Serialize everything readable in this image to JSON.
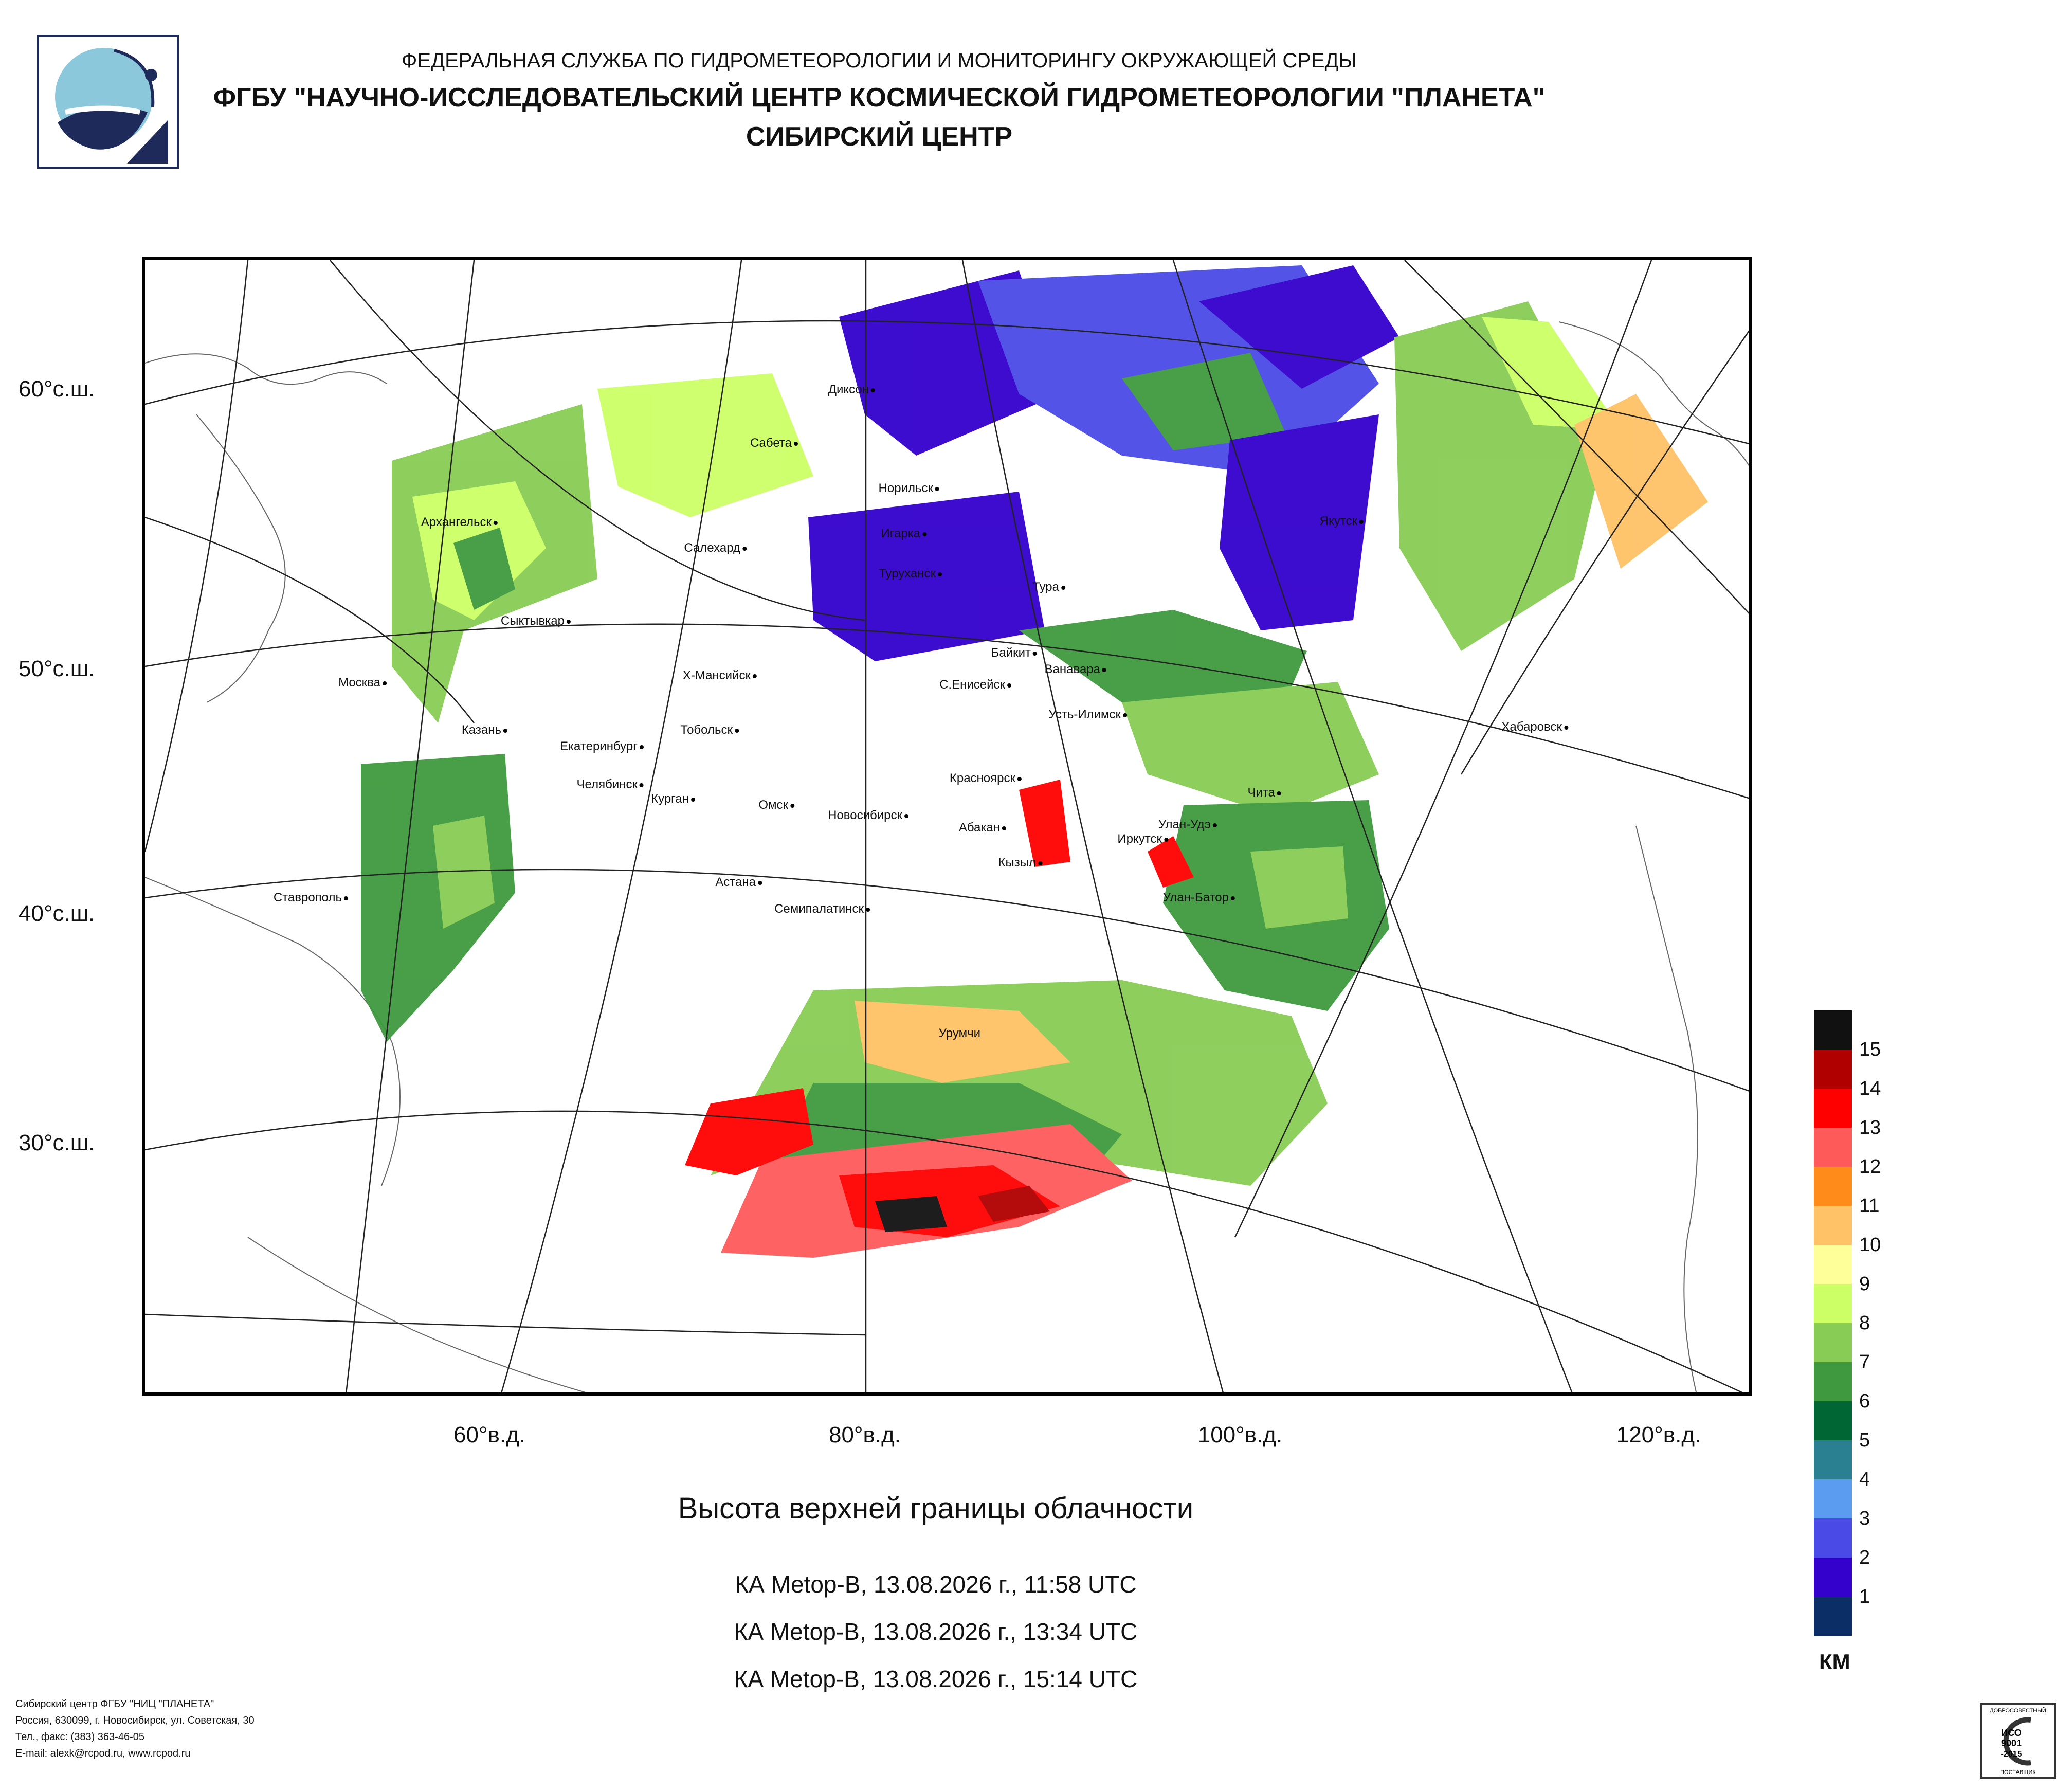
{
  "header": {
    "line1": "ФЕДЕРАЛЬНАЯ СЛУЖБА ПО ГИДРОМЕТЕОРОЛОГИИ И МОНИТОРИНГУ ОКРУЖАЮЩЕЙ СРЕДЫ",
    "line2": "ФГБУ \"НАУЧНО-ИССЛЕДОВАТЕЛЬСКИЙ ЦЕНТР КОСМИЧЕСКОЙ ГИДРОМЕТЕОРОЛОГИИ \"ПЛАНЕТА\"",
    "line3": "СИБИРСКИЙ ЦЕНТР"
  },
  "map": {
    "lat_labels": [
      "60°с.ш.",
      "50°с.ш.",
      "40°с.ш.",
      "30°с.ш."
    ],
    "lon_labels": [
      "60°в.д.",
      "80°в.д.",
      "100°в.д.",
      "120°в.д."
    ],
    "cities": [
      "Диксон",
      "Сабета",
      "Норильск",
      "Архангельск",
      "Игарка",
      "Салехард",
      "Якутск",
      "Туруханск",
      "Тура",
      "Сыктывкар",
      "Байкит",
      "Ванавара",
      "Х-Мансийск",
      "С.Енисейск",
      "Москва",
      "Усть-Илимск",
      "Хабаровск",
      "Казань",
      "Тобольск",
      "Екатеринбург",
      "Красноярск",
      "Челябинск",
      "Чита",
      "Курган",
      "Омск",
      "Новосибирск",
      "Улан-Удэ",
      "Абакан",
      "Иркутск",
      "Кызыл",
      "Астана",
      "Ставрополь",
      "Улан-Батор",
      "Семипалатинск",
      "Урумчи"
    ]
  },
  "title": "Высота верхней границы облачности",
  "passes": [
    "КА Metop-B, 13.08.2026 г., 11:58 UTC",
    "КА Metop-B, 13.08.2026 г., 13:34 UTC",
    "КА Metop-B, 13.08.2026 г., 15:14 UTC"
  ],
  "legend": {
    "unit": "КМ",
    "levels": [
      "15",
      "14",
      "13",
      "12",
      "11",
      "10",
      "9",
      "8",
      "7",
      "6",
      "5",
      "4",
      "3",
      "2",
      "1"
    ],
    "colors": [
      "#111111",
      "#b00000",
      "#ff0000",
      "#ff5a5a",
      "#ff8c1a",
      "#ffc266",
      "#ffff99",
      "#ccff66",
      "#88cc55",
      "#3f9a3f",
      "#006633",
      "#2a8090",
      "#5c9cf0",
      "#4a4ae6",
      "#3300cc",
      "#0b2e66"
    ]
  },
  "footer": {
    "line1": "Сибирский центр ФГБУ \"НИЦ \"ПЛАНЕТА\"",
    "line2": "Россия, 630099, г. Новосибирск, ул. Советская, 30",
    "line3": "Тел., факс: (383) 363-46-05",
    "line4": "E-mail: alexk@rcpod.ru, www.rcpod.ru"
  },
  "iso_badge": {
    "top": "ДОБРОСОВЕСТНЫЙ",
    "mid1": "ИСО",
    "mid2": "9001",
    "mid3": "-2015",
    "bottom": "ПОСТАВЩИК"
  }
}
